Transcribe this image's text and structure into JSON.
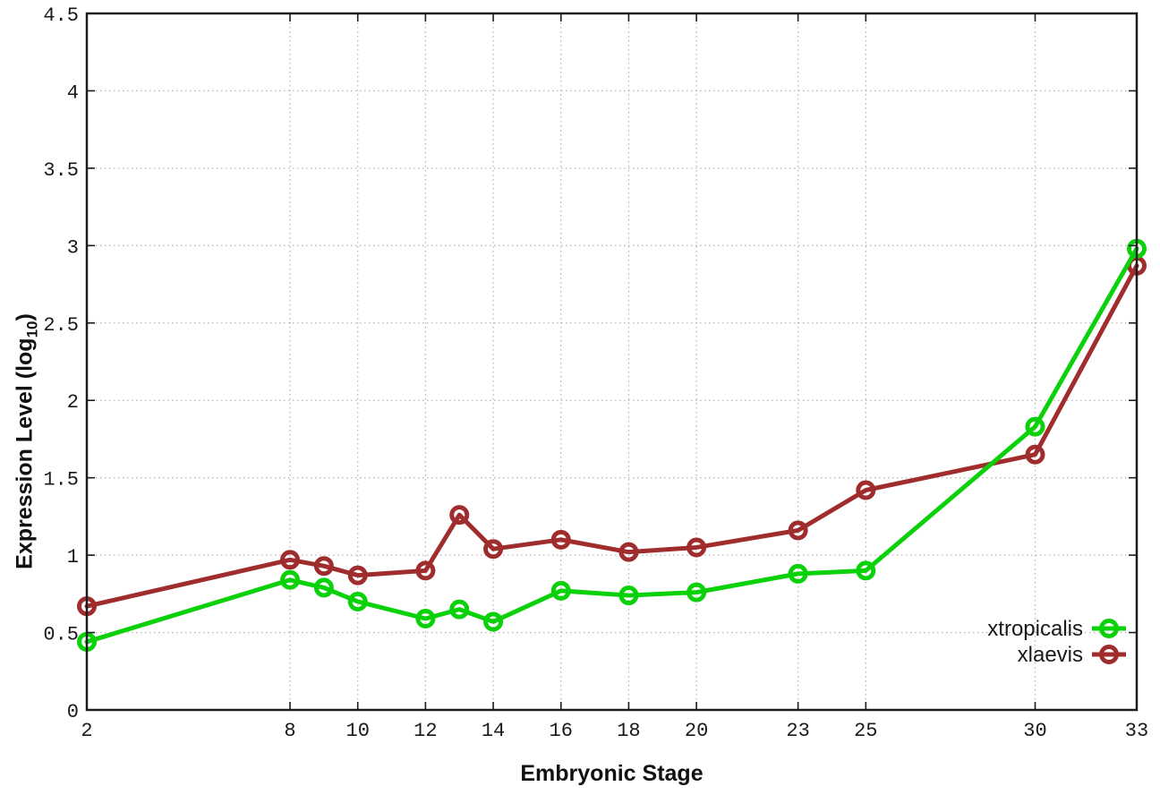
{
  "chart_data": {
    "type": "line",
    "title": "",
    "xlabel": "Embryonic Stage",
    "ylabel": "Expression Level (log10)",
    "ylabel_parts": {
      "prefix": "Expression Level (log",
      "sub": "10",
      "suffix": ")"
    },
    "x": [
      2,
      8,
      9,
      10,
      12,
      13,
      14,
      16,
      18,
      20,
      23,
      25,
      30,
      33
    ],
    "series": [
      {
        "name": "xtropicalis",
        "color": "#0bd10b",
        "marker": "open-circle",
        "values": [
          0.44,
          0.84,
          0.79,
          0.7,
          0.59,
          0.65,
          0.57,
          0.77,
          0.74,
          0.76,
          0.88,
          0.9,
          1.83,
          2.98
        ]
      },
      {
        "name": "xlaevis",
        "color": "#a02d2d",
        "marker": "open-circle",
        "values": [
          0.67,
          0.97,
          0.93,
          0.87,
          0.9,
          1.26,
          1.04,
          1.1,
          1.02,
          1.05,
          1.16,
          1.42,
          1.65,
          2.87
        ]
      }
    ],
    "xlim": [
      2,
      33
    ],
    "ylim": [
      0,
      4.5
    ],
    "xticks": [
      2,
      8,
      10,
      12,
      14,
      16,
      18,
      20,
      23,
      25,
      30,
      33
    ],
    "xtick_labels": [
      "2",
      "8",
      "10",
      "12",
      "14",
      "16",
      "18",
      "20",
      "23",
      "25",
      "30",
      "33"
    ],
    "yticks": [
      0,
      0.5,
      1,
      1.5,
      2,
      2.5,
      3,
      3.5,
      4,
      4.5
    ],
    "ytick_labels": [
      "0",
      "0.5",
      "1",
      "1.5",
      "2",
      "2.5",
      "3",
      "3.5",
      "4",
      "4.5"
    ],
    "grid": true,
    "grid_style": "dotted",
    "legend_position": "bottom-right",
    "colors": {
      "background": "#ffffff",
      "axis": "#1c1c1c",
      "grid": "#b8b8b8",
      "text": "#1a1a1a"
    }
  }
}
